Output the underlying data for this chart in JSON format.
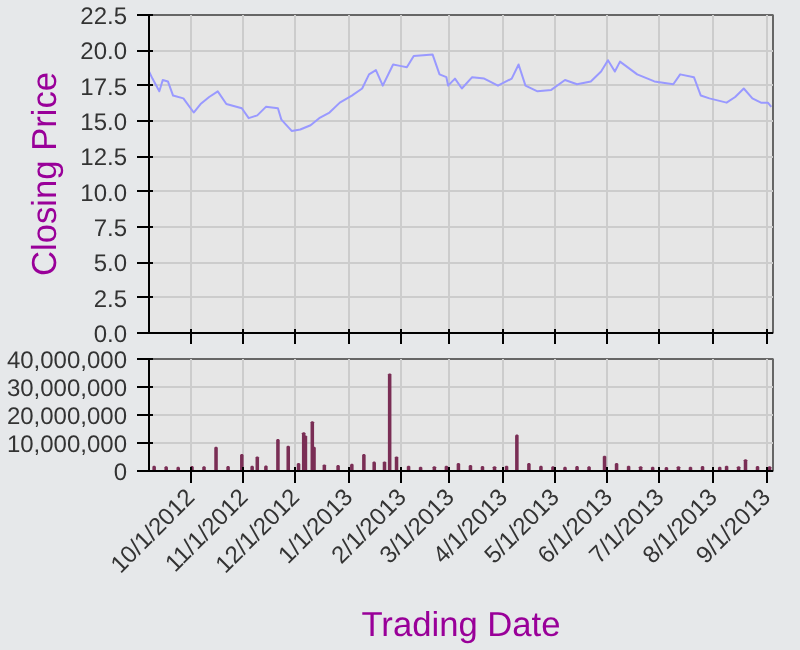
{
  "chart_data": [
    {
      "type": "line",
      "ylabel": "Closing Price",
      "xlim": [
        "2012-09-07",
        "2013-09-05"
      ],
      "xticks": [
        {
          "value": "2012-10-01",
          "label": null
        },
        {
          "value": "2012-11-01",
          "label": null
        },
        {
          "value": "2012-12-01",
          "label": null
        },
        {
          "value": "2013-01-01",
          "label": null
        },
        {
          "value": "2013-02-01",
          "label": null
        },
        {
          "value": "2013-03-01",
          "label": null
        },
        {
          "value": "2013-04-01",
          "label": null
        },
        {
          "value": "2013-05-01",
          "label": null
        },
        {
          "value": "2013-06-01",
          "label": null
        },
        {
          "value": "2013-07-01",
          "label": null
        },
        {
          "value": "2013-08-01",
          "label": null
        },
        {
          "value": "2013-09-01",
          "label": null
        }
      ],
      "ylim": [
        0,
        22.5
      ],
      "yticks": [
        {
          "value": 0,
          "label": "0.0"
        },
        {
          "value": 2.5,
          "label": "2.5"
        },
        {
          "value": 5,
          "label": "5.0"
        },
        {
          "value": 7.5,
          "label": "7.5"
        },
        {
          "value": 10,
          "label": "10.0"
        },
        {
          "value": 12.5,
          "label": "12.5"
        },
        {
          "value": 15,
          "label": "15.0"
        },
        {
          "value": 17.5,
          "label": "17.5"
        },
        {
          "value": 20,
          "label": "20.0"
        },
        {
          "value": 22.5,
          "label": "22.5"
        }
      ],
      "grid": true,
      "tick_labels": "y",
      "color": "#9999ff",
      "x": [
        "2012-09-07",
        "2012-09-09",
        "2012-09-13",
        "2012-09-15",
        "2012-09-18",
        "2012-09-21",
        "2012-09-27",
        "2012-10-03",
        "2012-10-07",
        "2012-10-12",
        "2012-10-17",
        "2012-10-22",
        "2012-10-31",
        "2012-11-04",
        "2012-11-09",
        "2012-11-14",
        "2012-11-21",
        "2012-11-23",
        "2012-11-29",
        "2012-12-04",
        "2012-12-10",
        "2012-12-15",
        "2012-12-21",
        "2012-12-27",
        "2013-01-03",
        "2013-01-09",
        "2013-01-13",
        "2013-01-17",
        "2013-01-21",
        "2013-01-27",
        "2013-01-31",
        "2013-02-04",
        "2013-02-08",
        "2013-02-19",
        "2013-02-23",
        "2013-02-27",
        "2013-02-28",
        "2013-03-04",
        "2013-03-08",
        "2013-03-14",
        "2013-03-21",
        "2013-03-29",
        "2013-04-06",
        "2013-04-10",
        "2013-04-14",
        "2013-04-21",
        "2013-04-29",
        "2013-05-07",
        "2013-05-14",
        "2013-05-22",
        "2013-05-28",
        "2013-06-01",
        "2013-06-05",
        "2013-06-08",
        "2013-06-18",
        "2013-06-28",
        "2013-07-09",
        "2013-07-13",
        "2013-07-21",
        "2013-07-25",
        "2013-07-30",
        "2013-08-09",
        "2013-08-14",
        "2013-08-19",
        "2013-08-24",
        "2013-08-29",
        "2013-09-02",
        "2013-09-04"
      ],
      "values": [
        18.5,
        18.0,
        17.1,
        17.9,
        17.8,
        16.8,
        16.6,
        15.6,
        16.2,
        16.7,
        17.1,
        16.2,
        15.9,
        15.2,
        15.4,
        16.0,
        15.9,
        15.1,
        14.3,
        14.4,
        14.7,
        15.2,
        15.6,
        16.3,
        16.8,
        17.3,
        18.3,
        18.6,
        17.5,
        19.0,
        18.9,
        18.8,
        19.6,
        19.7,
        18.3,
        18.1,
        17.5,
        18.0,
        17.3,
        18.1,
        18.0,
        17.5,
        18.0,
        19.0,
        17.5,
        17.1,
        17.2,
        17.9,
        17.6,
        17.8,
        18.5,
        19.3,
        18.5,
        19.2,
        18.3,
        17.8,
        17.6,
        18.3,
        18.1,
        16.8,
        16.6,
        16.3,
        16.7,
        17.3,
        16.6,
        16.3,
        16.3,
        16.0
      ]
    },
    {
      "type": "bar",
      "xlabel": "Trading Date",
      "xlim": [
        "2012-09-07",
        "2013-09-05"
      ],
      "xticks": [
        {
          "value": "2012-10-01",
          "label": "10/1/2012"
        },
        {
          "value": "2012-11-01",
          "label": "11/1/2012"
        },
        {
          "value": "2012-12-01",
          "label": "12/1/2012"
        },
        {
          "value": "2013-01-01",
          "label": "1/1/2013"
        },
        {
          "value": "2013-02-01",
          "label": "2/1/2013"
        },
        {
          "value": "2013-03-01",
          "label": "3/1/2013"
        },
        {
          "value": "2013-04-01",
          "label": "4/1/2013"
        },
        {
          "value": "2013-05-01",
          "label": "5/1/2013"
        },
        {
          "value": "2013-06-01",
          "label": "6/1/2013"
        },
        {
          "value": "2013-07-01",
          "label": "7/1/2013"
        },
        {
          "value": "2013-08-01",
          "label": "8/1/2013"
        },
        {
          "value": "2013-09-01",
          "label": "9/1/2013"
        }
      ],
      "ylim": [
        0,
        40000000
      ],
      "yticks": [
        {
          "value": 0,
          "label": "0"
        },
        {
          "value": 10000000,
          "label": "10,000,000"
        },
        {
          "value": 20000000,
          "label": "20,000,000"
        },
        {
          "value": 30000000,
          "label": "30,000,000"
        },
        {
          "value": 40000000,
          "label": "40,000,000"
        }
      ],
      "grid": true,
      "color": "#7a2e55",
      "x": [
        "2012-09-10",
        "2012-09-17",
        "2012-09-24",
        "2012-10-02",
        "2012-10-09",
        "2012-10-16",
        "2012-10-23",
        "2012-10-31",
        "2012-11-06",
        "2012-11-09",
        "2012-11-14",
        "2012-11-21",
        "2012-11-27",
        "2012-12-03",
        "2012-12-06",
        "2012-12-07",
        "2012-12-11",
        "2012-12-12",
        "2012-12-18",
        "2012-12-26",
        "2013-01-03",
        "2013-01-10",
        "2013-01-16",
        "2013-01-22",
        "2013-01-25",
        "2013-01-29",
        "2013-02-05",
        "2013-02-12",
        "2013-02-20",
        "2013-02-27",
        "2013-03-06",
        "2013-03-13",
        "2013-03-20",
        "2013-03-27",
        "2013-04-03",
        "2013-04-09",
        "2013-04-16",
        "2013-04-23",
        "2013-04-30",
        "2013-05-07",
        "2013-05-14",
        "2013-05-21",
        "2013-05-30",
        "2013-06-06",
        "2013-06-13",
        "2013-06-20",
        "2013-06-27",
        "2013-07-05",
        "2013-07-12",
        "2013-07-19",
        "2013-07-26",
        "2013-08-05",
        "2013-08-09",
        "2013-08-16",
        "2013-08-20",
        "2013-08-27",
        "2013-09-03"
      ],
      "values": [
        1500000,
        1300000,
        1200000,
        1400000,
        1300000,
        8300000,
        1400000,
        5700000,
        1500000,
        4800000,
        1600000,
        11100000,
        8700000,
        2500000,
        13500000,
        12300000,
        17400000,
        8300000,
        2000000,
        1800000,
        2200000,
        5700000,
        3000000,
        3000000,
        34500000,
        4800000,
        1500000,
        1200000,
        1300000,
        1500000,
        2500000,
        1800000,
        1400000,
        1300000,
        1500000,
        12700000,
        2500000,
        1500000,
        1300000,
        1200000,
        1400000,
        1300000,
        5100000,
        2500000,
        1500000,
        1300000,
        1200000,
        1100000,
        1300000,
        1200000,
        1400000,
        1200000,
        1500000,
        1300000,
        3800000,
        1400000,
        1300000
      ]
    }
  ]
}
